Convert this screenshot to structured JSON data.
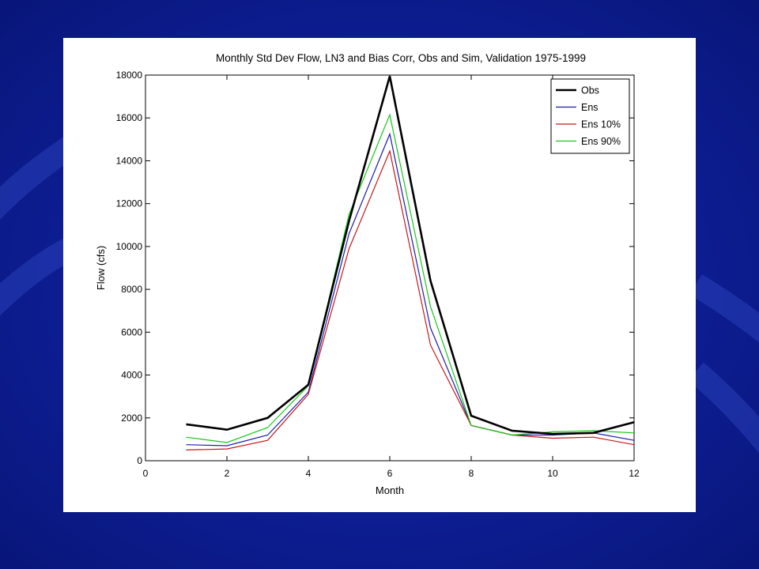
{
  "slide": {
    "background_color": "#0a1a8c",
    "panel_color": "#ffffff"
  },
  "chart_data": {
    "type": "line",
    "title": "Monthly Std Dev Flow, LN3 and Bias Corr, Obs and Sim, Validation 1975-1999",
    "xlabel": "Month",
    "ylabel": "Flow (cfs)",
    "xlim": [
      0,
      12
    ],
    "ylim": [
      0,
      18000
    ],
    "xticks": [
      0,
      2,
      4,
      6,
      8,
      10,
      12
    ],
    "yticks": [
      0,
      2000,
      4000,
      6000,
      8000,
      10000,
      12000,
      14000,
      16000,
      18000
    ],
    "grid": false,
    "legend_position": "top-right",
    "x": [
      1,
      2,
      3,
      4,
      5,
      6,
      7,
      8,
      9,
      10,
      11,
      12
    ],
    "series": [
      {
        "name": "Obs",
        "color": "#000000",
        "width": 2.6,
        "values": [
          1700,
          1450,
          2000,
          3550,
          11200,
          17950,
          8400,
          2100,
          1400,
          1250,
          1300,
          1800
        ]
      },
      {
        "name": "Ens",
        "color": "#1c1cb0",
        "width": 1.2,
        "values": [
          750,
          700,
          1200,
          3200,
          10600,
          15250,
          6200,
          1650,
          1200,
          1200,
          1300,
          950
        ]
      },
      {
        "name": "Ens 10%",
        "color": "#c81818",
        "width": 1.2,
        "values": [
          500,
          550,
          950,
          3100,
          9900,
          14450,
          5400,
          1650,
          1200,
          1050,
          1100,
          750
        ]
      },
      {
        "name": "Ens 90%",
        "color": "#18c818",
        "width": 1.2,
        "values": [
          1100,
          850,
          1550,
          3500,
          11500,
          16150,
          7200,
          1650,
          1200,
          1350,
          1400,
          1300
        ]
      }
    ]
  }
}
